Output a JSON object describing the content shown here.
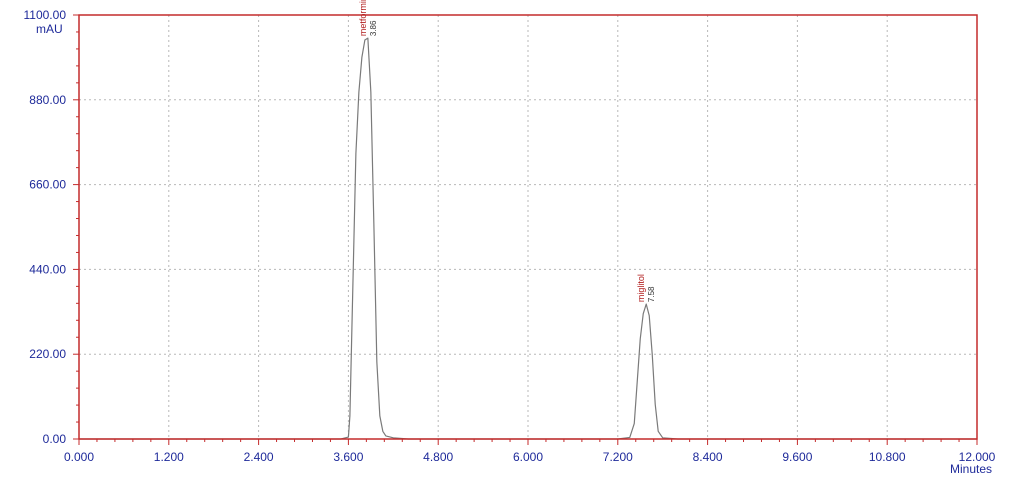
{
  "chart_data": {
    "type": "line",
    "title": "",
    "ylabel": "mAU",
    "xlabel": "Minutes",
    "xlim": [
      0,
      12
    ],
    "ylim": [
      0,
      1100
    ],
    "x_ticks": [
      "0.000",
      "1.200",
      "2.400",
      "3.600",
      "4.800",
      "6.000",
      "7.200",
      "8.400",
      "9.600",
      "10.800",
      "12.000"
    ],
    "y_ticks": [
      "0.00",
      "220.00",
      "440.00",
      "660.00",
      "880.00",
      "1100.00"
    ],
    "grid": true,
    "series": [
      {
        "x": [
          0,
          3.5,
          3.6,
          3.62,
          3.66,
          3.7,
          3.74,
          3.78,
          3.82,
          3.86,
          3.9,
          3.94,
          3.98,
          4.02,
          4.06,
          4.1,
          4.2,
          4.4,
          7.2,
          7.36,
          7.42,
          7.46,
          7.5,
          7.54,
          7.58,
          7.62,
          7.66,
          7.7,
          7.74,
          7.8,
          8.0,
          12.0
        ],
        "y": [
          0,
          0,
          5,
          60,
          400,
          740,
          900,
          990,
          1035,
          1040,
          900,
          560,
          200,
          60,
          20,
          8,
          3,
          0,
          0,
          4,
          40,
          150,
          260,
          325,
          350,
          320,
          220,
          90,
          20,
          3,
          0,
          0
        ]
      }
    ],
    "peaks": [
      {
        "name": "metformin",
        "rt": "3.86",
        "x": 3.86,
        "y": 1040
      },
      {
        "name": "miglitol",
        "rt": "7.58",
        "x": 7.58,
        "y": 350
      }
    ]
  },
  "colors": {
    "frame": "#c42b2b",
    "trace": "#7a7a7a",
    "grid": "#b8b8b8",
    "labels": "#1e2a9a",
    "peak_name": "#b21f1f"
  }
}
